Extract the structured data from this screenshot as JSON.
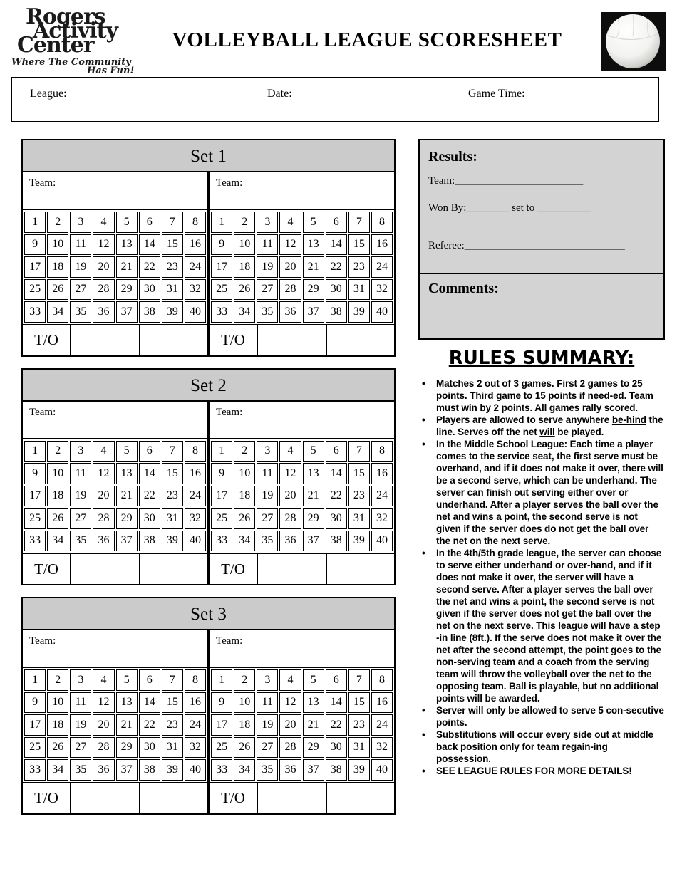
{
  "logo": {
    "line1": "Rogers",
    "line2": "Activity",
    "line3": "Center",
    "tagline1": "Where The Community",
    "tagline2": "Has Fun!"
  },
  "title": "VOLLEYBALL LEAGUE SCORESHEET",
  "info_bar": {
    "league_label": "League:",
    "league_line": "____________________",
    "date_label": "Date:",
    "date_line": "_______________",
    "game_time_label": "Game Time:",
    "game_time_line": "_________________"
  },
  "sets": {
    "titles": [
      "Set 1",
      "Set 2",
      "Set 3"
    ],
    "team_label": "Team:",
    "timeout_label": "T/O",
    "grid_rows": [
      [
        1,
        2,
        3,
        4,
        5,
        6,
        7,
        8
      ],
      [
        9,
        10,
        11,
        12,
        13,
        14,
        15,
        16
      ],
      [
        17,
        18,
        19,
        20,
        21,
        22,
        23,
        24
      ],
      [
        25,
        26,
        27,
        28,
        29,
        30,
        31,
        32
      ],
      [
        33,
        34,
        35,
        36,
        37,
        38,
        39,
        40
      ]
    ]
  },
  "results": {
    "heading": "Results:",
    "team_label": "Team:",
    "team_line": "________________________",
    "won_by_label": "Won By:",
    "won_by_line": "________",
    "set_to_label": " set to ",
    "set_to_line": "__________",
    "referee_label": "Referee:",
    "referee_line": "______________________________"
  },
  "comments": {
    "heading": "Comments:"
  },
  "rules": {
    "heading": "RULES SUMMARY:",
    "bullets": [
      [
        {
          "t": "Matches 2 out of 3 games.  First 2 games to 25 points.  Third game to 15 points if need-ed.  Team must win by 2 points.  All games rally scored."
        }
      ],
      [
        {
          "t": "Players are allowed to serve anywhere "
        },
        {
          "t": "be-hind",
          "u": true
        },
        {
          "t": " the line.  Serves off the net "
        },
        {
          "t": "will",
          "u": true
        },
        {
          "t": " be played."
        }
      ],
      [
        {
          "t": "In the Middle School League:  Each time a player comes to the service seat, the first serve must be overhand, and if it does not make it over, there will be a second serve, which can be underhand.  The server can finish out serving either over or underhand.  After a player serves the ball over the net and wins a point, the second serve is not given if the server does do not get the ball over the net on the next serve."
        }
      ],
      [
        {
          "t": "In the 4th/5th grade league, the server can choose to serve either underhand or over-hand, and if it does not make it over, the server will have a second serve.  After a player serves the ball over the net and wins a point, the second serve is not given if the server does not get the ball over the net on the next serve.  This league will have a step -in line (8ft.).  If the serve does not make it over the net after the second attempt, the point goes to the non-serving team and a coach from the serving team will throw the volleyball over the net to the opposing team.  Ball is playable, but no additional points will be awarded."
        }
      ],
      [
        {
          "t": "Server will only be allowed to serve 5 con-secutive points."
        }
      ],
      [
        {
          "t": "Substitutions will occur every side out at middle back position only for team regain-ing possession."
        }
      ],
      [
        {
          "t": "SEE LEAGUE RULES FOR MORE DETAILS!"
        }
      ]
    ]
  },
  "colors": {
    "set_header_bg": "#cbcbcb",
    "panel_bg": "#d3d3d3",
    "border": "#000000",
    "ball_background": "#0d0d0d"
  }
}
